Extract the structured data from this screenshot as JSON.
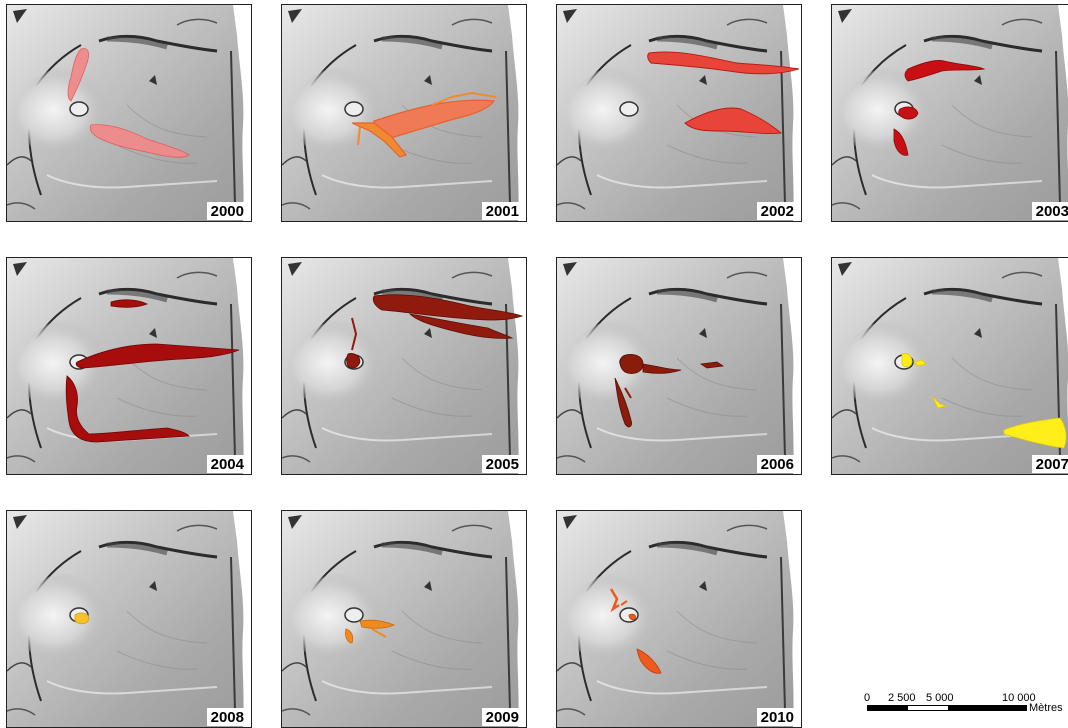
{
  "colors": {
    "terrain": "#bdbdbd",
    "terrain_dark": "#7a7a7a",
    "ridge": "#2b2b2b",
    "y2000": "#f08a8a",
    "y2001": "#f07a55",
    "y2002": "#e8443a",
    "y2003": "#c80f14",
    "y2004": "#a80d0d",
    "y2005": "#8f1a0d",
    "y2006": "#8a1c0c",
    "y2007": "#ffee1a",
    "y2008": "#f5c22a",
    "y2009": "#f08a1e",
    "y2010": "#ee5a1c"
  },
  "panels": [
    {
      "year": "2000",
      "color_key": "y2000"
    },
    {
      "year": "2001",
      "color_key": "y2001"
    },
    {
      "year": "2002",
      "color_key": "y2002"
    },
    {
      "year": "2003",
      "color_key": "y2003"
    },
    {
      "year": "2004",
      "color_key": "y2004"
    },
    {
      "year": "2005",
      "color_key": "y2005"
    },
    {
      "year": "2006",
      "color_key": "y2006"
    },
    {
      "year": "2007",
      "color_key": "y2007"
    },
    {
      "year": "2008",
      "color_key": "y2008"
    },
    {
      "year": "2009",
      "color_key": "y2009"
    },
    {
      "year": "2010",
      "color_key": "y2010"
    }
  ],
  "scalebar": {
    "tick_labels": [
      "0",
      "2 500",
      "5 000",
      "10 000"
    ],
    "unit": "Mètres"
  }
}
